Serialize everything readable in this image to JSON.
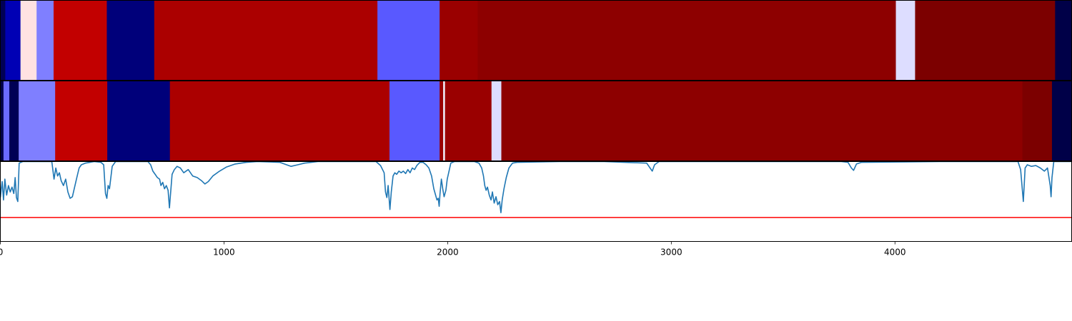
{
  "chart_data": {
    "type": "heatmap",
    "x_range": [
      0,
      4790
    ],
    "x_ticks": [
      0,
      1000,
      2000,
      3000,
      4000
    ],
    "x_tick_labels": [
      "0",
      "1000",
      "2000",
      "3000",
      "4000"
    ],
    "row_a": [
      {
        "x0": 0,
        "x1": 22,
        "color": "#000055"
      },
      {
        "x0": 22,
        "x1": 90,
        "color": "#0000b5"
      },
      {
        "x0": 90,
        "x1": 162,
        "color": "#ffe2e2"
      },
      {
        "x0": 162,
        "x1": 238,
        "color": "#7f7fff"
      },
      {
        "x0": 238,
        "x1": 476,
        "color": "#c20000"
      },
      {
        "x0": 476,
        "x1": 688,
        "color": "#00007a"
      },
      {
        "x0": 688,
        "x1": 1686,
        "color": "#ab0000"
      },
      {
        "x0": 1686,
        "x1": 1964,
        "color": "#5959ff"
      },
      {
        "x0": 1964,
        "x1": 2134,
        "color": "#9a0000"
      },
      {
        "x0": 2134,
        "x1": 4004,
        "color": "#8d0000"
      },
      {
        "x0": 4004,
        "x1": 4090,
        "color": "#ddddff"
      },
      {
        "x0": 4090,
        "x1": 4716,
        "color": "#7c0000"
      },
      {
        "x0": 4716,
        "x1": 4790,
        "color": "#000048"
      }
    ],
    "row_b": [
      {
        "x0": 0,
        "x1": 14,
        "color": "#00004a"
      },
      {
        "x0": 14,
        "x1": 40,
        "color": "#6a6aff"
      },
      {
        "x0": 40,
        "x1": 82,
        "color": "#000055"
      },
      {
        "x0": 82,
        "x1": 245,
        "color": "#7f7fff"
      },
      {
        "x0": 245,
        "x1": 478,
        "color": "#c20000"
      },
      {
        "x0": 478,
        "x1": 758,
        "color": "#00007a"
      },
      {
        "x0": 758,
        "x1": 1740,
        "color": "#ab0000"
      },
      {
        "x0": 1740,
        "x1": 1964,
        "color": "#5959ff"
      },
      {
        "x0": 1964,
        "x1": 1980,
        "color": "#9a0000"
      },
      {
        "x0": 1980,
        "x1": 1988,
        "color": "#f2f2ff"
      },
      {
        "x0": 1988,
        "x1": 2196,
        "color": "#9a0000"
      },
      {
        "x0": 2196,
        "x1": 2240,
        "color": "#ddddff"
      },
      {
        "x0": 2240,
        "x1": 4570,
        "color": "#8d0000"
      },
      {
        "x0": 4570,
        "x1": 4702,
        "color": "#7c0000"
      },
      {
        "x0": 4702,
        "x1": 4790,
        "color": "#000048"
      }
    ],
    "line": {
      "color": "#1f77b4",
      "y_range": [
        0,
        1
      ],
      "threshold": 0.3,
      "threshold_color": "#ff0000",
      "points": [
        [
          0,
          0.55
        ],
        [
          8,
          0.75
        ],
        [
          14,
          0.52
        ],
        [
          20,
          0.78
        ],
        [
          28,
          0.58
        ],
        [
          36,
          0.7
        ],
        [
          44,
          0.62
        ],
        [
          52,
          0.68
        ],
        [
          60,
          0.6
        ],
        [
          66,
          0.8
        ],
        [
          72,
          0.55
        ],
        [
          78,
          0.5
        ],
        [
          84,
          0.98
        ],
        [
          100,
          1.0
        ],
        [
          200,
          1.0
        ],
        [
          230,
          1.0
        ],
        [
          240,
          0.78
        ],
        [
          248,
          0.92
        ],
        [
          256,
          0.82
        ],
        [
          264,
          0.86
        ],
        [
          272,
          0.76
        ],
        [
          282,
          0.7
        ],
        [
          292,
          0.78
        ],
        [
          302,
          0.62
        ],
        [
          312,
          0.54
        ],
        [
          322,
          0.56
        ],
        [
          332,
          0.68
        ],
        [
          342,
          0.8
        ],
        [
          352,
          0.92
        ],
        [
          362,
          0.96
        ],
        [
          380,
          0.98
        ],
        [
          420,
          1.0
        ],
        [
          450,
          0.99
        ],
        [
          462,
          0.96
        ],
        [
          470,
          0.6
        ],
        [
          476,
          0.54
        ],
        [
          482,
          0.7
        ],
        [
          488,
          0.66
        ],
        [
          494,
          0.8
        ],
        [
          500,
          0.94
        ],
        [
          515,
          1.0
        ],
        [
          640,
          1.0
        ],
        [
          660,
          1.0
        ],
        [
          672,
          0.96
        ],
        [
          682,
          0.88
        ],
        [
          692,
          0.84
        ],
        [
          702,
          0.8
        ],
        [
          712,
          0.78
        ],
        [
          718,
          0.7
        ],
        [
          726,
          0.74
        ],
        [
          734,
          0.66
        ],
        [
          742,
          0.7
        ],
        [
          750,
          0.64
        ],
        [
          756,
          0.42
        ],
        [
          760,
          0.56
        ],
        [
          768,
          0.84
        ],
        [
          778,
          0.9
        ],
        [
          790,
          0.94
        ],
        [
          805,
          0.92
        ],
        [
          820,
          0.86
        ],
        [
          840,
          0.9
        ],
        [
          860,
          0.82
        ],
        [
          880,
          0.8
        ],
        [
          900,
          0.76
        ],
        [
          915,
          0.72
        ],
        [
          930,
          0.75
        ],
        [
          950,
          0.82
        ],
        [
          980,
          0.88
        ],
        [
          1010,
          0.93
        ],
        [
          1050,
          0.97
        ],
        [
          1100,
          0.99
        ],
        [
          1150,
          1.0
        ],
        [
          1250,
          0.99
        ],
        [
          1300,
          0.94
        ],
        [
          1330,
          0.96
        ],
        [
          1360,
          0.98
        ],
        [
          1420,
          1.0
        ],
        [
          1680,
          1.0
        ],
        [
          1700,
          0.95
        ],
        [
          1716,
          0.86
        ],
        [
          1722,
          0.62
        ],
        [
          1728,
          0.55
        ],
        [
          1734,
          0.7
        ],
        [
          1742,
          0.4
        ],
        [
          1748,
          0.62
        ],
        [
          1756,
          0.82
        ],
        [
          1764,
          0.86
        ],
        [
          1772,
          0.84
        ],
        [
          1782,
          0.88
        ],
        [
          1792,
          0.86
        ],
        [
          1802,
          0.88
        ],
        [
          1812,
          0.85
        ],
        [
          1822,
          0.9
        ],
        [
          1832,
          0.86
        ],
        [
          1842,
          0.92
        ],
        [
          1852,
          0.9
        ],
        [
          1862,
          0.95
        ],
        [
          1876,
          0.99
        ],
        [
          1890,
          0.99
        ],
        [
          1904,
          0.96
        ],
        [
          1916,
          0.92
        ],
        [
          1928,
          0.82
        ],
        [
          1938,
          0.66
        ],
        [
          1946,
          0.58
        ],
        [
          1952,
          0.52
        ],
        [
          1958,
          0.54
        ],
        [
          1962,
          0.44
        ],
        [
          1966,
          0.6
        ],
        [
          1972,
          0.78
        ],
        [
          1978,
          0.66
        ],
        [
          1984,
          0.56
        ],
        [
          1992,
          0.64
        ],
        [
          1998,
          0.78
        ],
        [
          2006,
          0.88
        ],
        [
          2014,
          0.98
        ],
        [
          2030,
          1.0
        ],
        [
          2120,
          1.0
        ],
        [
          2140,
          0.98
        ],
        [
          2152,
          0.92
        ],
        [
          2160,
          0.82
        ],
        [
          2166,
          0.7
        ],
        [
          2172,
          0.64
        ],
        [
          2178,
          0.68
        ],
        [
          2186,
          0.58
        ],
        [
          2194,
          0.52
        ],
        [
          2200,
          0.62
        ],
        [
          2208,
          0.48
        ],
        [
          2216,
          0.56
        ],
        [
          2224,
          0.46
        ],
        [
          2232,
          0.5
        ],
        [
          2238,
          0.36
        ],
        [
          2244,
          0.52
        ],
        [
          2252,
          0.66
        ],
        [
          2262,
          0.8
        ],
        [
          2274,
          0.92
        ],
        [
          2290,
          0.98
        ],
        [
          2310,
          0.99
        ],
        [
          2500,
          1.0
        ],
        [
          2700,
          1.0
        ],
        [
          2890,
          0.98
        ],
        [
          2905,
          0.92
        ],
        [
          2915,
          0.88
        ],
        [
          2925,
          0.96
        ],
        [
          2945,
          1.0
        ],
        [
          3200,
          1.0
        ],
        [
          3500,
          1.0
        ],
        [
          3760,
          1.0
        ],
        [
          3790,
          0.99
        ],
        [
          3805,
          0.92
        ],
        [
          3815,
          0.89
        ],
        [
          3828,
          0.97
        ],
        [
          3850,
          0.99
        ],
        [
          4200,
          1.0
        ],
        [
          4500,
          1.0
        ],
        [
          4550,
          1.0
        ],
        [
          4562,
          0.9
        ],
        [
          4568,
          0.7
        ],
        [
          4574,
          0.5
        ],
        [
          4582,
          0.92
        ],
        [
          4592,
          0.96
        ],
        [
          4610,
          0.94
        ],
        [
          4630,
          0.95
        ],
        [
          4650,
          0.92
        ],
        [
          4668,
          0.88
        ],
        [
          4682,
          0.92
        ],
        [
          4694,
          0.7
        ],
        [
          4698,
          0.56
        ],
        [
          4702,
          0.8
        ],
        [
          4710,
          1.0
        ],
        [
          4790,
          1.0
        ]
      ]
    }
  }
}
